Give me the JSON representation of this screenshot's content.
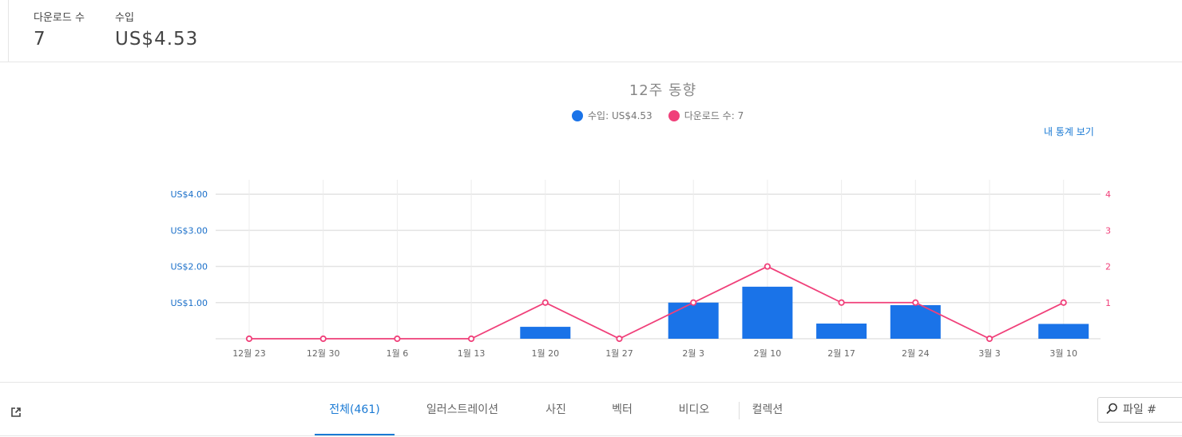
{
  "summary": {
    "downloads_label": "다운로드 수",
    "downloads_value": "7",
    "earnings_label": "수입",
    "earnings_value": "US$4.53"
  },
  "chart_section": {
    "title": "12주 동향",
    "legend_earnings": "수입: US$4.53",
    "legend_downloads": "다운로드 수: 7",
    "stats_link": "내 통계 보기"
  },
  "colors": {
    "earnings": "#1a73e8",
    "downloads": "#f0407a",
    "link": "#1a7ad4"
  },
  "chart_data": {
    "type": "bar+line",
    "title": "12주 동향",
    "categories": [
      "12월 23",
      "12월 30",
      "1월 6",
      "1월 13",
      "1월 20",
      "1월 27",
      "2월 3",
      "2월 10",
      "2월 17",
      "2월 24",
      "3월 3",
      "3월 10"
    ],
    "series": [
      {
        "name": "수입",
        "type": "bar",
        "axis": "left",
        "values": [
          0,
          0,
          0,
          0,
          0.33,
          0,
          1.0,
          1.44,
          0.42,
          0.93,
          0,
          0.41
        ]
      },
      {
        "name": "다운로드 수",
        "type": "line",
        "axis": "right",
        "values": [
          0,
          0,
          0,
          0,
          1,
          0,
          1,
          2,
          1,
          1,
          0,
          1
        ]
      }
    ],
    "y_left": {
      "ticks": [
        "US$1.00",
        "US$2.00",
        "US$3.00",
        "US$4.00"
      ],
      "tick_values": [
        1,
        2,
        3,
        4
      ],
      "ylim": [
        0,
        4.4
      ]
    },
    "y_right": {
      "ticks": [
        "1",
        "2",
        "3",
        "4"
      ],
      "tick_values": [
        1,
        2,
        3,
        4
      ],
      "ylim": [
        0,
        4.4
      ]
    },
    "grid": true
  },
  "tabs": [
    {
      "label": "전체(461)",
      "active": true
    },
    {
      "label": "일러스트레이션",
      "active": false
    },
    {
      "label": "사진",
      "active": false
    },
    {
      "label": "벡터",
      "active": false
    },
    {
      "label": "비디오",
      "active": false
    },
    {
      "label": "컬렉션",
      "active": false
    }
  ],
  "search": {
    "placeholder": "파일 #"
  },
  "icons": {
    "external": "external-link-icon",
    "search": "search-icon"
  }
}
